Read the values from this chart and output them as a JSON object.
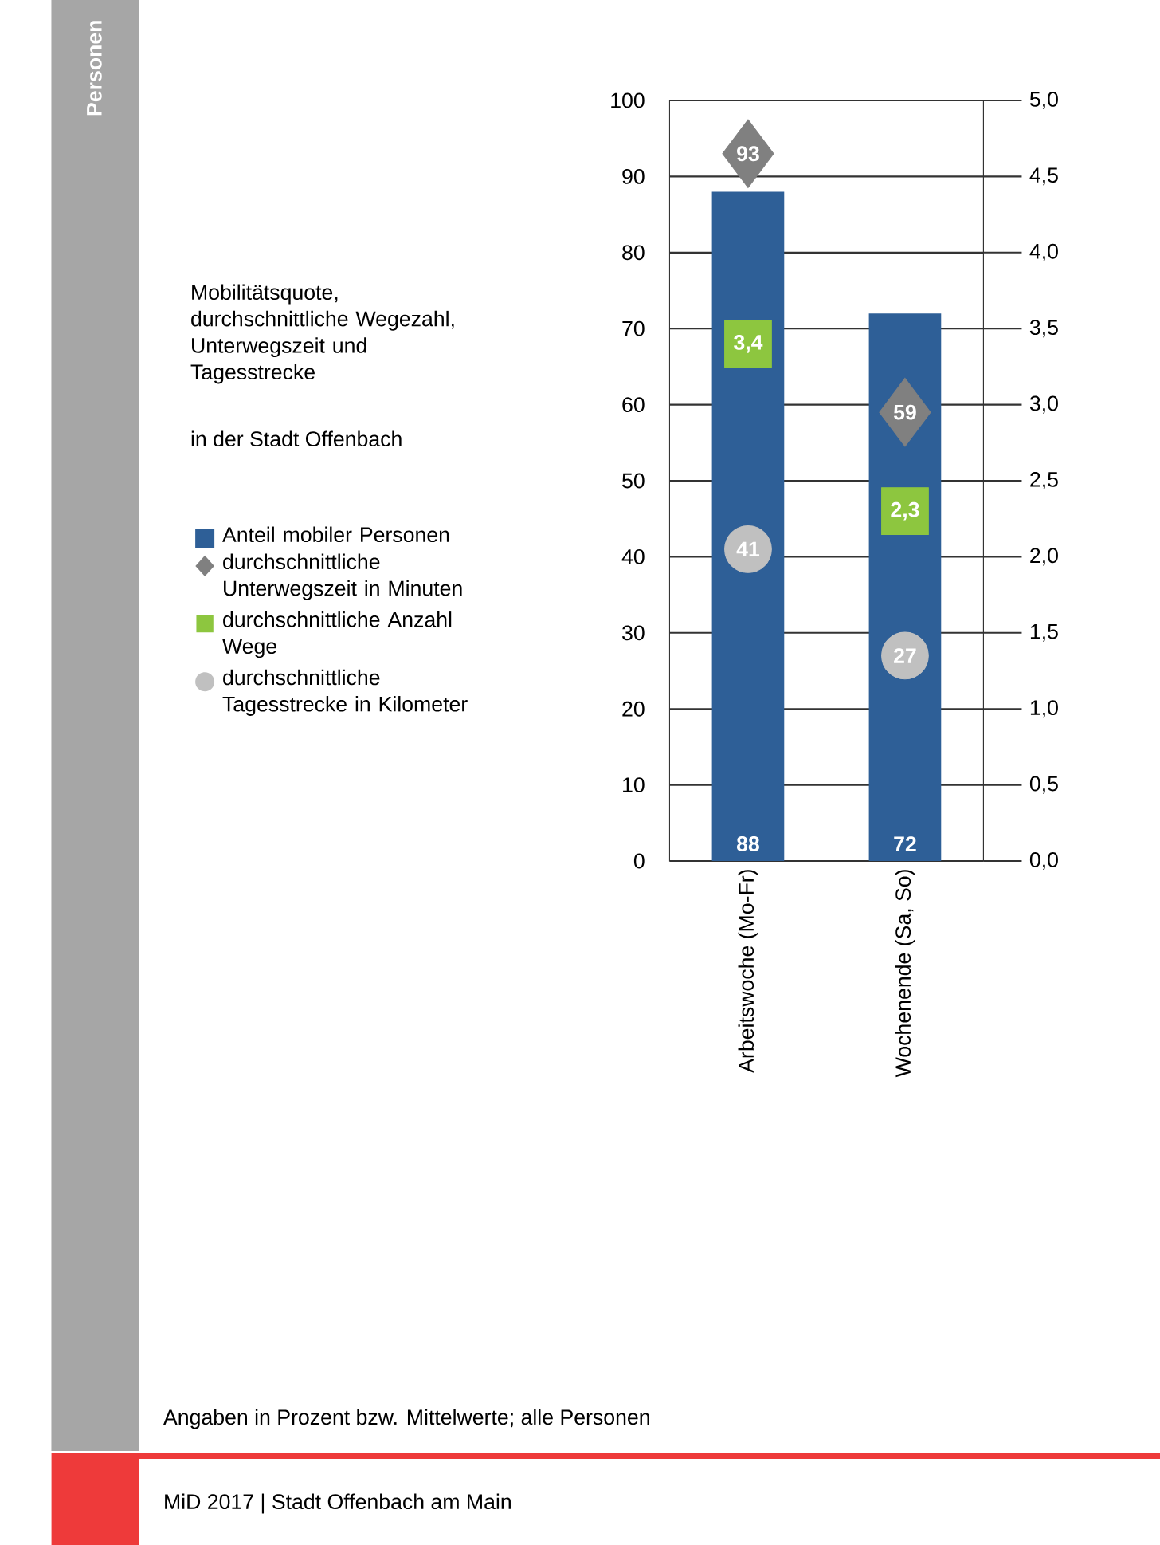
{
  "chart_data": {
    "type": "bar",
    "title": "Mobilitätsquote, durchschnittliche Wegezahl, Unterwegszeit und Tagesstrecke",
    "subtitle": "in der Stadt Offenbach",
    "categories": [
      "Arbeitswoche (Mo-Fr)",
      "Wochenende (Sa, So)"
    ],
    "series": [
      {
        "name": "Anteil mobiler Personen",
        "color": "#2e5f97",
        "values": [
          88,
          72
        ],
        "value_labels": [
          "88",
          "72"
        ]
      },
      {
        "name": "durchschnittliche Unterwegszeit in Minuten",
        "type": "scatter",
        "marker": "diamond",
        "color": "#808080",
        "values": [
          93,
          59
        ],
        "value_labels": [
          "93",
          "59"
        ]
      },
      {
        "name": "durchschnittliche Anzahl Wege",
        "type": "scatter",
        "marker": "square",
        "color": "#8dc63f",
        "axis": "y2",
        "values": [
          3.4,
          2.3
        ],
        "value_labels": [
          "3,4",
          "2,3"
        ]
      },
      {
        "name": "durchschnittliche Tagesstrecke in Kilometer",
        "type": "scatter",
        "marker": "circle",
        "color": "#c0c0c0",
        "values": [
          41,
          27
        ],
        "value_labels": [
          "41",
          "27"
        ]
      }
    ],
    "ylim": [
      0,
      100
    ],
    "yticks": [
      0,
      10,
      20,
      30,
      40,
      50,
      60,
      70,
      80,
      90,
      100
    ],
    "y2lim": [
      0,
      5
    ],
    "y2ticks": [
      {
        "value": 0,
        "label": "0,0"
      },
      {
        "value": 0.5,
        "label": "0,5"
      },
      {
        "value": 1,
        "label": "1,0"
      },
      {
        "value": 1.5,
        "label": "1,5"
      },
      {
        "value": 2,
        "label": "2,0"
      },
      {
        "value": 2.5,
        "label": "2,5"
      },
      {
        "value": 3,
        "label": "3,0"
      },
      {
        "value": 3.5,
        "label": "3,5"
      },
      {
        "value": 4,
        "label": "4,0"
      },
      {
        "value": 4.5,
        "label": "4,5"
      },
      {
        "value": 5,
        "label": "5,0"
      }
    ],
    "grid": "y",
    "legend": "left",
    "annotations": [
      "Angaben in Prozent bzw. Mittelwerte; alle Personen",
      "MiD 2017 | Stadt Offenbach am Main",
      "Personen"
    ]
  }
}
